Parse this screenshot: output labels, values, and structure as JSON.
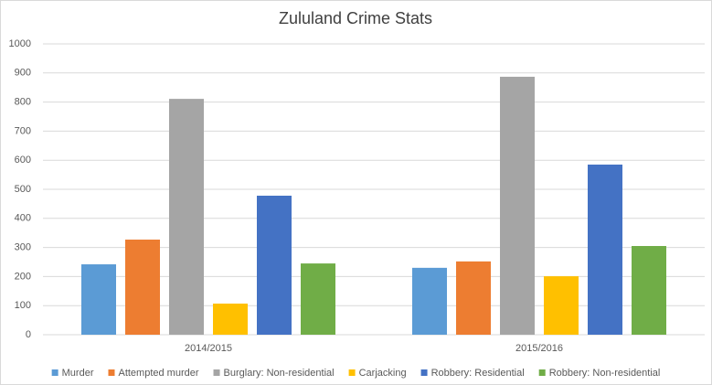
{
  "chart_data": {
    "type": "bar",
    "title": "Zululand Crime Stats",
    "categories": [
      "2014/2015",
      "2015/2016"
    ],
    "series": [
      {
        "name": "Murder",
        "color": "#5b9bd5",
        "values": [
          242,
          230
        ]
      },
      {
        "name": "Attempted murder",
        "color": "#ed7d31",
        "values": [
          327,
          252
        ]
      },
      {
        "name": "Burglary: Non-residential",
        "color": "#a5a5a5",
        "values": [
          811,
          887
        ]
      },
      {
        "name": "Carjacking",
        "color": "#ffc000",
        "values": [
          107,
          201
        ]
      },
      {
        "name": "Robbery: Residential",
        "color": "#4472c4",
        "values": [
          478,
          585
        ]
      },
      {
        "name": "Robbery: Non-residential",
        "color": "#70ad47",
        "values": [
          245,
          305
        ]
      }
    ],
    "ylim": [
      0,
      1000
    ],
    "yticks": [
      0,
      100,
      200,
      300,
      400,
      500,
      600,
      700,
      800,
      900,
      1000
    ],
    "grid": true,
    "legend": "bottom"
  }
}
